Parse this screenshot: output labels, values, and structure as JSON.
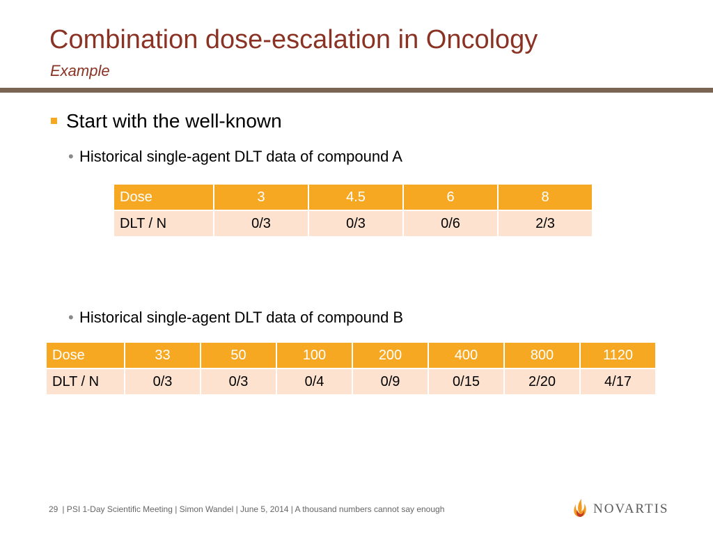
{
  "slide": {
    "title": "Combination dose-escalation in Oncology",
    "subtitle": "Example"
  },
  "content": {
    "bullet_main": "Start with the well-known",
    "sub_a": "Historical single-agent DLT data of compound A",
    "sub_b": "Historical single-agent DLT data of compound B"
  },
  "table_a": {
    "header": [
      "Dose",
      "3",
      "4.5",
      "6",
      "8"
    ],
    "row": [
      "DLT / N",
      "0/3",
      "0/3",
      "0/6",
      "2/3"
    ]
  },
  "table_b": {
    "header": [
      "Dose",
      "33",
      "50",
      "100",
      "200",
      "400",
      "800",
      "1120"
    ],
    "row": [
      "DLT / N",
      "0/3",
      "0/3",
      "0/4",
      "0/9",
      "0/15",
      "2/20",
      "4/17"
    ]
  },
  "footer": {
    "page": "29",
    "text": "| PSI 1-Day Scientific Meeting | Simon Wandel | June 5, 2014 | A thousand numbers cannot say enough"
  },
  "logo": {
    "wordmark": "NOVARTIS",
    "icon": "novartis-flame-icon"
  },
  "colors": {
    "title": "#8a3324",
    "rule": "#7a6552",
    "table_header": "#f7a823",
    "table_row": "#fde3cf",
    "bullet_square": "#f7a823"
  }
}
